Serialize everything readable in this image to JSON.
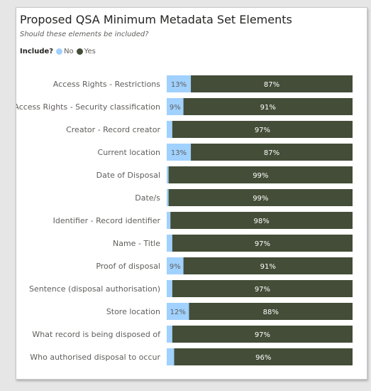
{
  "title": "Proposed QSA Minimum Metadata Set Elements",
  "subtitle": "Should these elements be included?",
  "legend": {
    "title": "Include?",
    "items": [
      {
        "label": "No",
        "color": "#a0d1ff"
      },
      {
        "label": "Yes",
        "color": "#434d37"
      }
    ]
  },
  "chart_data": {
    "type": "bar",
    "orientation": "horizontal",
    "stacked": true,
    "percent": true,
    "categories": [
      "Access Rights - Restrictions",
      "Access Rights - Security classification",
      "Creator - Record creator",
      "Current location",
      "Date of Disposal",
      "Date/s",
      "Identifier - Record identifier",
      "Name - Title",
      "Proof of disposal",
      "Sentence (disposal authorisation)",
      "Store location",
      "What record is being disposed of",
      "Who authorised disposal to occur"
    ],
    "series": [
      {
        "name": "No",
        "color": "#a0d1ff",
        "label_color": "#605e5c",
        "values": [
          13,
          9,
          3,
          13,
          1,
          1,
          2,
          3,
          9,
          3,
          12,
          3,
          4
        ],
        "labels": [
          "13%",
          "9%",
          "",
          "13%",
          "",
          "",
          "",
          "",
          "9%",
          "",
          "12%",
          "",
          ""
        ]
      },
      {
        "name": "Yes",
        "color": "#434d37",
        "label_color": "#ffffff",
        "values": [
          87,
          91,
          97,
          87,
          99,
          99,
          98,
          97,
          91,
          97,
          88,
          97,
          96
        ],
        "labels": [
          "87%",
          "91%",
          "97%",
          "87%",
          "99%",
          "99%",
          "98%",
          "97%",
          "91%",
          "97%",
          "88%",
          "97%",
          "96%"
        ]
      }
    ],
    "xlim": [
      0,
      100
    ],
    "grid": false,
    "legend_position": "top-left"
  }
}
